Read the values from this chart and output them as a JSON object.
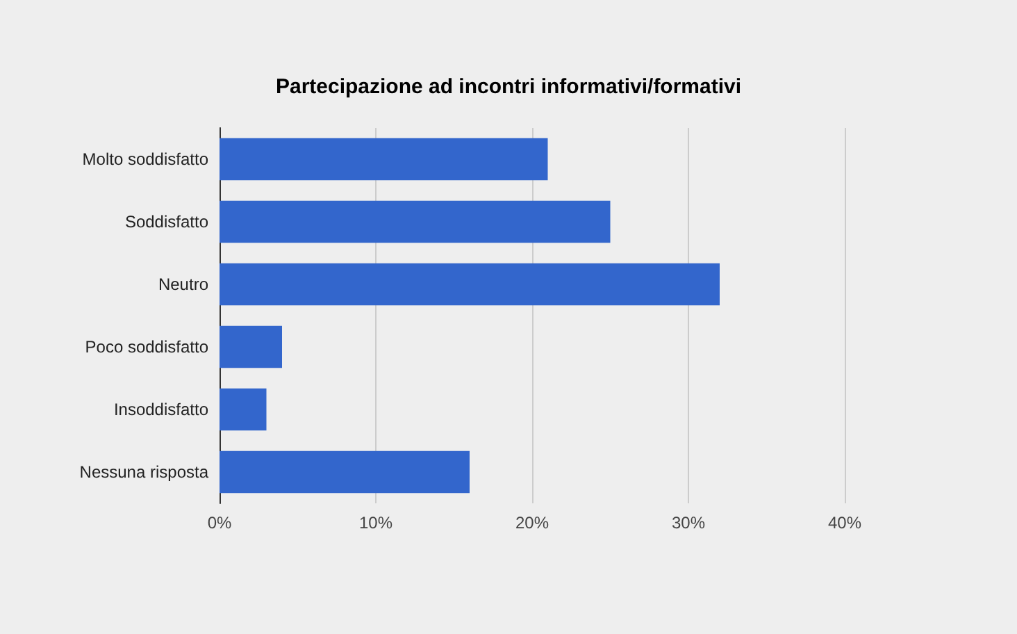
{
  "chart_data": {
    "type": "bar",
    "orientation": "horizontal",
    "title": "Partecipazione ad incontri informativi/formativi",
    "categories": [
      "Molto soddisfatto",
      "Soddisfatto",
      "Neutro",
      "Poco soddisfatto",
      "Insoddisfatto",
      "Nessuna risposta"
    ],
    "values": [
      21,
      25,
      32,
      4,
      3,
      16
    ],
    "color": "#3366cc",
    "xlim": [
      0,
      40
    ],
    "xticks": [
      {
        "value": 0,
        "label": "0%"
      },
      {
        "value": 10,
        "label": "10%"
      },
      {
        "value": 20,
        "label": "20%"
      },
      {
        "value": 30,
        "label": "30%"
      },
      {
        "value": 40,
        "label": "40%"
      }
    ],
    "grid": "x"
  }
}
